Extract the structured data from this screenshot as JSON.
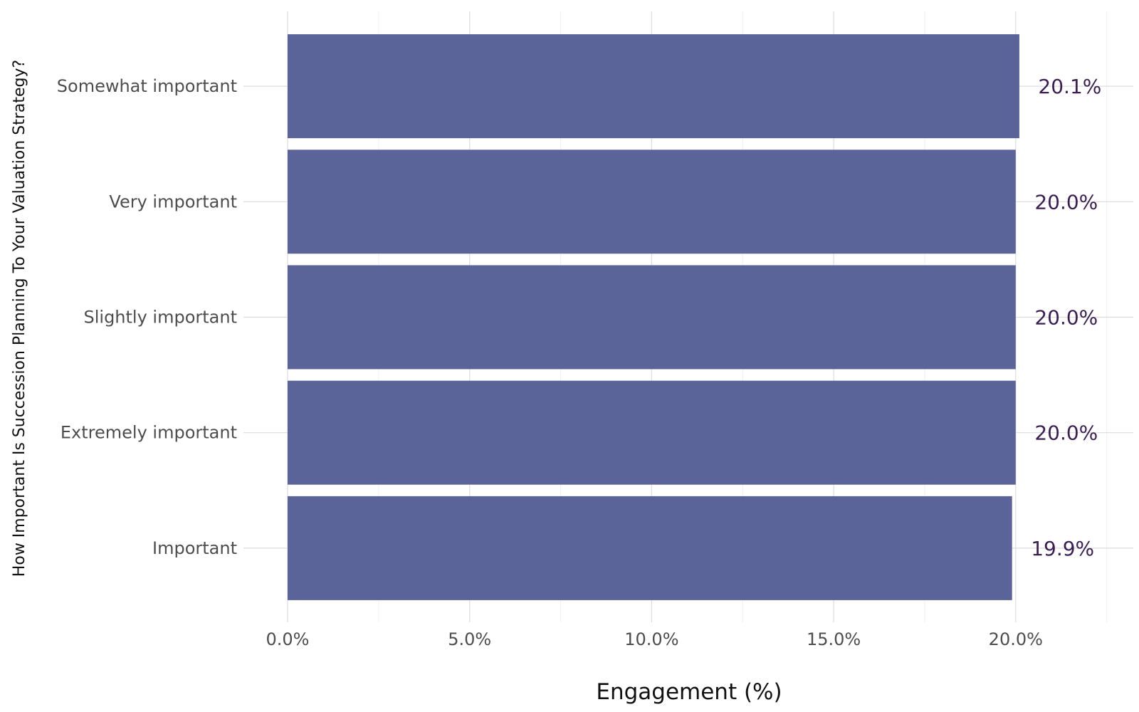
{
  "chart_data": {
    "type": "bar",
    "orientation": "horizontal",
    "categories": [
      "Somewhat important",
      "Very important",
      "Slightly important",
      "Extremely important",
      "Important"
    ],
    "values": [
      20.1,
      20.0,
      20.0,
      20.0,
      19.9
    ],
    "value_labels": [
      "20.1%",
      "20.0%",
      "20.0%",
      "20.0%",
      "19.9%"
    ],
    "xlabel": "Engagement (%)",
    "ylabel": "How Important Is Succession Planning To Your Valuation Strategy?",
    "xlim": [
      0,
      22.5
    ],
    "x_ticks": [
      0,
      5,
      10,
      15,
      20
    ],
    "x_tick_labels": [
      "0.0%",
      "5.0%",
      "10.0%",
      "15.0%",
      "20.0%"
    ],
    "grid": true,
    "legend": "none",
    "colors": {
      "bar": "#5b6498",
      "value_label": "#3b1e54",
      "tick_label": "#4d4d4d",
      "axis_title": "#111111",
      "grid_major": "#dcdcdc",
      "grid_minor": "#efefef"
    }
  }
}
